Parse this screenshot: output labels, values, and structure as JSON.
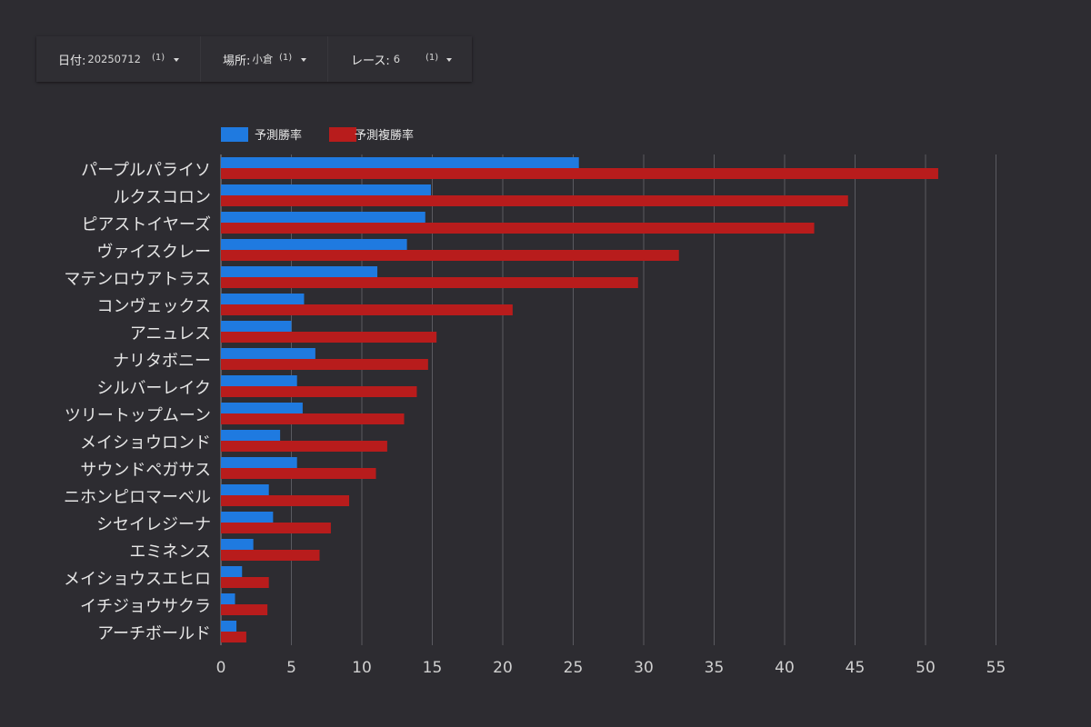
{
  "filters": [
    {
      "label": "日付:",
      "value": "20250712",
      "count": "(1)"
    },
    {
      "label": "場所:",
      "value": "小倉",
      "count": "(1)"
    },
    {
      "label": "レース:",
      "value": "6",
      "count": "(1)"
    }
  ],
  "colors": {
    "series1": "#1f7ae0",
    "series2": "#b81c1c",
    "background": "#2d2c31",
    "grid": "#5a5a60",
    "text": "#e6e6e6"
  },
  "chart_data": {
    "type": "bar",
    "orientation": "horizontal",
    "categories": [
      "パープルパライソ",
      "ルクスコロン",
      "ピアストイヤーズ",
      "ヴァイスクレー",
      "マテンロウアトラス",
      "コンヴェックス",
      "アニュレス",
      "ナリタボニー",
      "シルバーレイク",
      "ツリートップムーン",
      "メイショウロンド",
      "サウンドペガサス",
      "ニホンピロマーベル",
      "シセイレジーナ",
      "エミネンス",
      "メイショウスエヒロ",
      "イチジョウサクラ",
      "アーチボールド"
    ],
    "series": [
      {
        "name": "予測勝率",
        "values": [
          25.4,
          14.9,
          14.5,
          13.2,
          11.1,
          5.9,
          5.0,
          6.7,
          5.4,
          5.8,
          4.2,
          5.4,
          3.4,
          3.7,
          2.3,
          1.5,
          1.0,
          1.1
        ]
      },
      {
        "name": "予測複勝率",
        "values": [
          50.9,
          44.5,
          42.1,
          32.5,
          29.6,
          20.7,
          15.3,
          14.7,
          13.9,
          13.0,
          11.8,
          11.0,
          9.1,
          7.8,
          7.0,
          3.4,
          3.3,
          1.8
        ]
      }
    ],
    "xlim": [
      0,
      55
    ],
    "xticks": [
      0,
      5,
      10,
      15,
      20,
      25,
      30,
      35,
      40,
      45,
      50,
      55
    ],
    "legend": "top-left",
    "grid": true
  }
}
